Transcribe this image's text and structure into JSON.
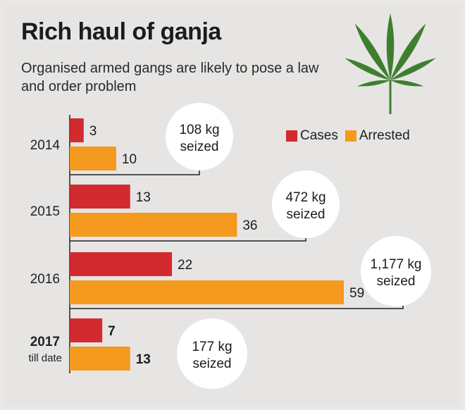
{
  "title": "Rich haul of ganja",
  "subtitle": "Organised armed gangs are likely to pose a law and order problem",
  "legend": {
    "cases_label": "Cases",
    "arrested_label": "Arrested"
  },
  "colors": {
    "cases": "#d12a2f",
    "arrested": "#f39a1f",
    "leaf": "#3e7f2f"
  },
  "chart_data": {
    "type": "bar",
    "orientation": "horizontal",
    "categories": [
      "2014",
      "2015",
      "2016",
      "2017"
    ],
    "category_sublabels": [
      "",
      "",
      "",
      "till date"
    ],
    "series": [
      {
        "name": "Cases",
        "values": [
          3,
          13,
          22,
          7
        ]
      },
      {
        "name": "Arrested",
        "values": [
          10,
          36,
          59,
          13
        ]
      }
    ],
    "annotations": [
      {
        "amount": "108 kg",
        "word": "seized"
      },
      {
        "amount": "472 kg",
        "word": "seized"
      },
      {
        "amount": "1,177 kg",
        "word": "seized"
      },
      {
        "amount": "177 kg",
        "word": "seized"
      }
    ],
    "grid": false,
    "legend_position": "top-right"
  }
}
